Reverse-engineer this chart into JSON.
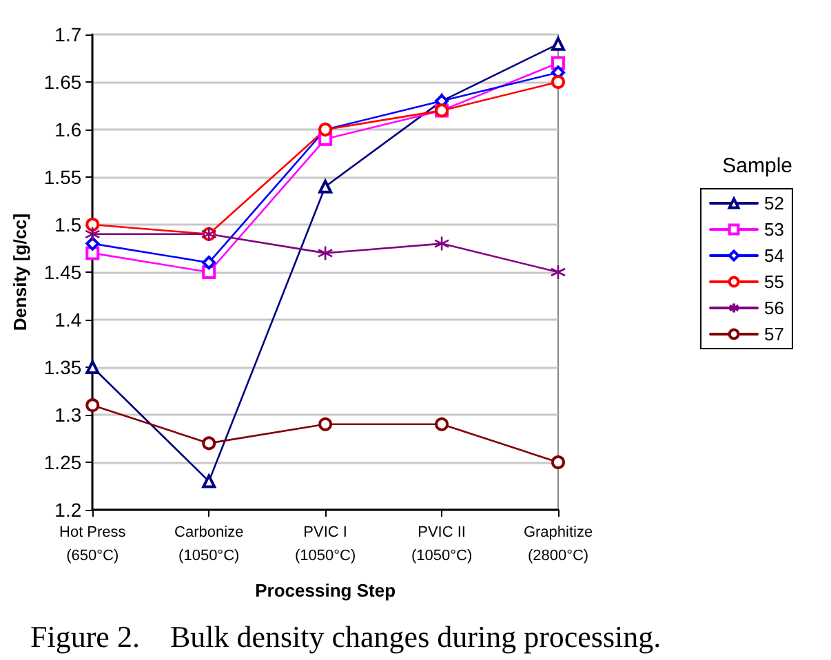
{
  "chart_data": {
    "type": "line",
    "xlabel": "Processing Step",
    "ylabel": "Density [g/cc]",
    "legend_title": "Sample",
    "categories": [
      "Hot Press\n(650°C)",
      "Carbonize\n(1050°C)",
      "PVIC I\n(1050°C)",
      "PVIC II\n(1050°C)",
      "Graphitize\n(2800°C)"
    ],
    "series": [
      {
        "name": "52",
        "color": "#000080",
        "marker": "triangle",
        "values": [
          1.35,
          1.23,
          1.54,
          1.63,
          1.69
        ]
      },
      {
        "name": "53",
        "color": "#ff00ff",
        "marker": "square",
        "values": [
          1.47,
          1.45,
          1.59,
          1.62,
          1.67
        ]
      },
      {
        "name": "54",
        "color": "#0000ff",
        "marker": "diamond",
        "values": [
          1.48,
          1.46,
          1.6,
          1.63,
          1.66
        ]
      },
      {
        "name": "55",
        "color": "#ff0000",
        "marker": "circle",
        "values": [
          1.5,
          1.49,
          1.6,
          1.62,
          1.65
        ]
      },
      {
        "name": "56",
        "color": "#800080",
        "marker": "cross",
        "values": [
          1.49,
          1.49,
          1.47,
          1.48,
          1.45
        ]
      },
      {
        "name": "57",
        "color": "#800000",
        "marker": "circle",
        "values": [
          1.31,
          1.27,
          1.29,
          1.29,
          1.25
        ]
      }
    ],
    "ylim": [
      1.2,
      1.7
    ],
    "yticks": [
      1.2,
      1.25,
      1.3,
      1.35,
      1.4,
      1.45,
      1.5,
      1.55,
      1.6,
      1.65,
      1.7
    ],
    "grid": "y",
    "legend": "right",
    "line_style": "solid",
    "annotations": [
      "Figure 2.    Bulk density changes during processing."
    ]
  }
}
